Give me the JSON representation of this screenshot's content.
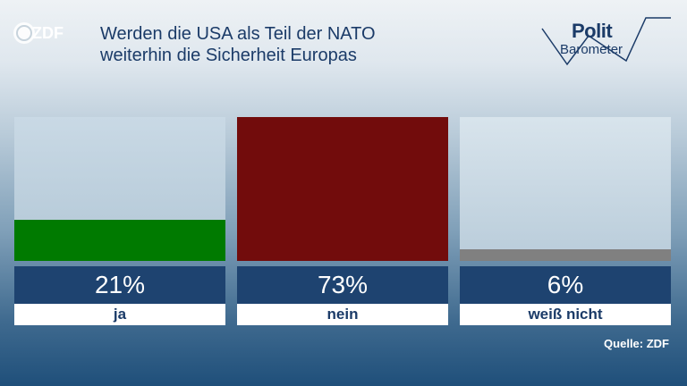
{
  "header": {
    "logo_text": "ZDF",
    "title_line1": "Werden die USA als Teil der NATO",
    "title_line2": "weiterhin die Sicherheit Europas",
    "brand_line1": "Polit",
    "brand_line2": "Barometer"
  },
  "chart_data": {
    "type": "bar",
    "categories": [
      "ja",
      "nein",
      "weiß nicht"
    ],
    "values": [
      21,
      73,
      6
    ],
    "value_labels": [
      "21%",
      "73%",
      "6%"
    ],
    "colors": [
      "#007a00",
      "#720c0c",
      "#808080"
    ],
    "ylim": [
      0,
      73
    ],
    "grid": false
  },
  "footer": {
    "source": "Quelle: ZDF"
  }
}
